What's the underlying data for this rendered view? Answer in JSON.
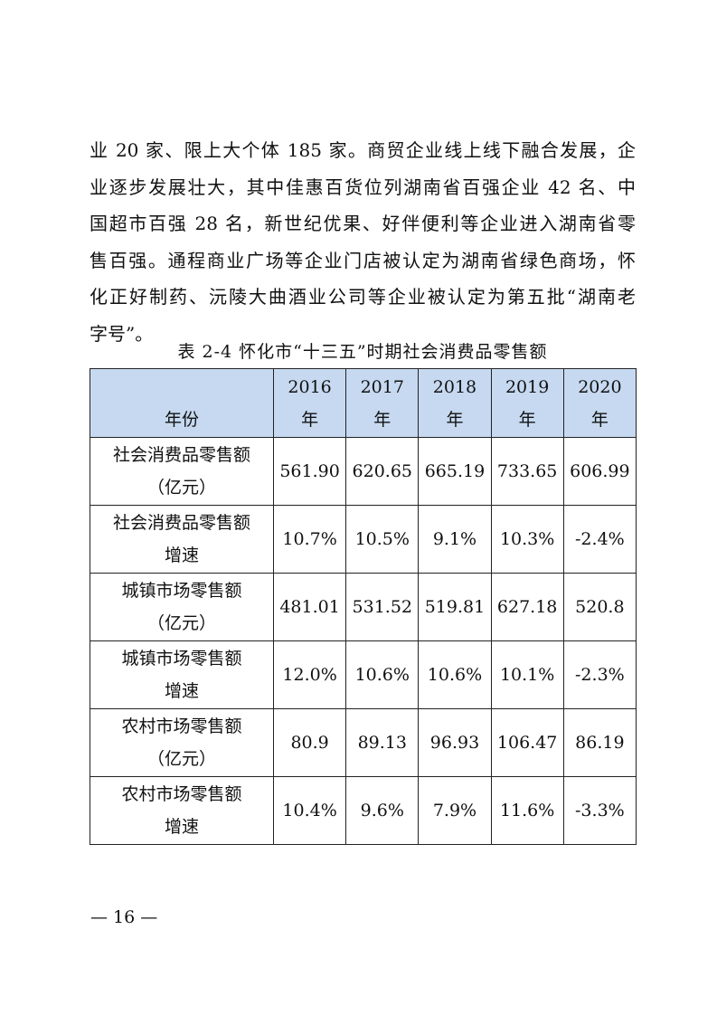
{
  "paragraph": {
    "lines": [
      "业 20 家、限上大个体 185 家。商贸企业线上线下融合发展，企",
      "业逐步发展壮大，其中佳惠百货位列湖南省百强企业 42 名、中",
      "国超市百强 28 名，新世纪优果、好伴便利等企业进入湖南省零",
      "售百强。通程商业广场等企业门店被认定为湖南省绿色商场，怀",
      "化正好制药、沅陵大曲酒业公司等企业被认定为第五批“湖南老",
      "字号”。"
    ]
  },
  "table": {
    "caption": "表 2-4  怀化市“十三五”时期社会消费品零售额",
    "header_color": "#c6d9f1",
    "corner_label": "年份",
    "years": [
      {
        "year": "2016",
        "unit": "年"
      },
      {
        "year": "2017",
        "unit": "年"
      },
      {
        "year": "2018",
        "unit": "年"
      },
      {
        "year": "2019",
        "unit": "年"
      },
      {
        "year": "2020",
        "unit": "年"
      }
    ],
    "rows": [
      {
        "label1": "社会消费品零售额",
        "label2": "（亿元）",
        "values": [
          "561.90",
          "620.65",
          "665.19",
          "733.65",
          "606.99"
        ]
      },
      {
        "label1": "社会消费品零售额",
        "label2": "增速",
        "values": [
          "10.7%",
          "10.5%",
          "9.1%",
          "10.3%",
          "-2.4%"
        ]
      },
      {
        "label1": "城镇市场零售额",
        "label2": "（亿元）",
        "values": [
          "481.01",
          "531.52",
          "519.81",
          "627.18",
          "520.8"
        ]
      },
      {
        "label1": "城镇市场零售额",
        "label2": "增速",
        "values": [
          "12.0%",
          "10.6%",
          "10.6%",
          "10.1%",
          "-2.3%"
        ]
      },
      {
        "label1": "农村市场零售额",
        "label2": "（亿元）",
        "values": [
          "80.9",
          "89.13",
          "96.93",
          "106.47",
          "86.19"
        ]
      },
      {
        "label1": "农村市场零售额",
        "label2": "增速",
        "values": [
          "10.4%",
          "9.6%",
          "7.9%",
          "11.6%",
          "-3.3%"
        ]
      }
    ]
  },
  "footer": {
    "page_number": "— 16 —"
  }
}
